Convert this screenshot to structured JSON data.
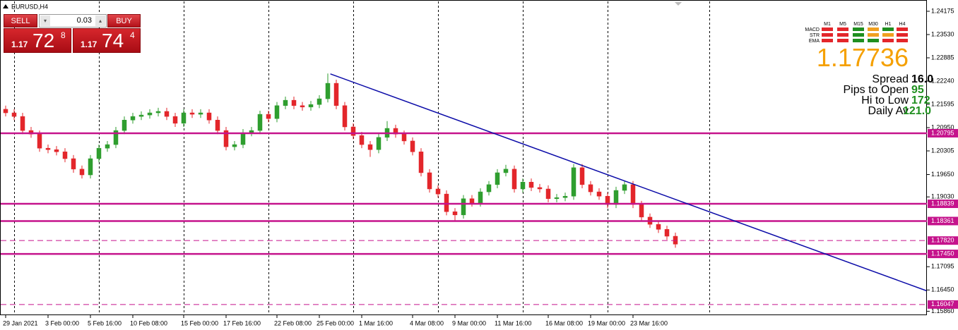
{
  "chart_data": {
    "type": "candlestick",
    "title": "EURUSD,H4",
    "categories": [
      "29 Jan 2021",
      null,
      null,
      null,
      null,
      "3 Feb 00:00",
      null,
      null,
      null,
      null,
      "5 Feb 16:00",
      null,
      null,
      null,
      null,
      "10 Feb 08:00",
      null,
      null,
      null,
      null,
      null,
      "15 Feb 00:00",
      null,
      null,
      null,
      null,
      "17 Feb 16:00",
      null,
      null,
      null,
      null,
      null,
      "22 Feb 08:00",
      null,
      null,
      null,
      null,
      "25 Feb 00:00",
      null,
      null,
      null,
      null,
      "1 Mar 16:00",
      null,
      null,
      null,
      null,
      null,
      "4 Mar 08:00",
      null,
      null,
      null,
      null,
      "9 Mar 00:00",
      null,
      null,
      null,
      null,
      "11 Mar 16:00",
      null,
      null,
      null,
      null,
      null,
      "16 Mar 08:00",
      null,
      null,
      null,
      null,
      "19 Mar 00:00",
      null,
      null,
      null,
      null,
      "23 Mar 16:00",
      null,
      null,
      null,
      null,
      null
    ],
    "open": [
      1.2146,
      1.2136,
      1.2126,
      1.2087,
      1.2077,
      1.2038,
      1.2034,
      1.2028,
      1.2009,
      1.198,
      1.1964,
      1.2009,
      1.2038,
      1.2048,
      1.2087,
      1.2116,
      1.2126,
      1.213,
      1.2136,
      1.214,
      1.2126,
      1.2107,
      1.2136,
      1.2132,
      1.2136,
      1.2116,
      1.2087,
      1.2042,
      1.2048,
      1.2081,
      1.2087,
      1.2132,
      1.212,
      1.2156,
      1.2171,
      1.2156,
      1.2152,
      1.2159,
      1.2175,
      1.2218,
      1.2156,
      1.2097,
      1.2073,
      1.2048,
      1.2034,
      1.2068,
      1.2093,
      1.2077,
      1.2058,
      1.2028,
      1.197,
      1.1925,
      1.1911,
      1.1862,
      1.1853,
      1.1898,
      1.1886,
      1.1917,
      1.1937,
      1.197,
      1.198,
      1.1925,
      1.1944,
      1.1929,
      1.1925,
      1.1898,
      1.1901,
      1.1905,
      1.1984,
      1.1937,
      1.1917,
      1.1905,
      1.1882,
      1.1921,
      1.1937,
      1.1882,
      1.1847,
      1.1827,
      1.1813,
      1.1794
    ],
    "high": [
      1.2156,
      1.2146,
      1.2136,
      1.2097,
      1.2087,
      1.2048,
      1.2044,
      1.2038,
      1.2019,
      1.199,
      1.2019,
      1.2048,
      1.2058,
      1.2097,
      1.2126,
      1.2136,
      1.214,
      1.2146,
      1.215,
      1.215,
      1.2136,
      1.2146,
      1.2146,
      1.2146,
      1.2146,
      1.2126,
      1.2097,
      1.2058,
      1.2091,
      1.2097,
      1.2142,
      1.2142,
      1.2166,
      1.2181,
      1.2181,
      1.2166,
      1.2169,
      1.2185,
      1.2245,
      1.2228,
      1.2166,
      1.2107,
      1.2083,
      1.2058,
      1.2078,
      1.2113,
      1.2103,
      1.2087,
      1.2068,
      1.2038,
      1.198,
      1.1935,
      1.1921,
      1.1872,
      1.1908,
      1.1908,
      1.1927,
      1.1947,
      1.198,
      1.1992,
      1.199,
      1.1954,
      1.1954,
      1.1939,
      1.1935,
      1.1911,
      1.1915,
      1.1994,
      1.1994,
      1.1947,
      1.1927,
      1.1915,
      1.1931,
      1.1947,
      1.1947,
      1.1892,
      1.1857,
      1.1837,
      1.1823,
      1.1804
    ],
    "low": [
      1.2126,
      1.2116,
      1.2077,
      1.2067,
      1.2028,
      1.2024,
      1.2018,
      1.1999,
      1.197,
      1.1954,
      1.1954,
      1.1999,
      1.2028,
      1.2038,
      1.2077,
      1.2106,
      1.2116,
      1.212,
      1.2126,
      1.2116,
      1.2097,
      1.2097,
      1.2122,
      1.2122,
      1.2106,
      1.2077,
      1.2032,
      1.2032,
      1.2038,
      1.2071,
      1.2077,
      1.211,
      1.211,
      1.2146,
      1.2146,
      1.2142,
      1.2142,
      1.2149,
      1.2165,
      1.2146,
      1.2087,
      1.2063,
      1.2038,
      1.2014,
      1.2024,
      1.2058,
      1.2067,
      1.2048,
      1.2018,
      1.196,
      1.1915,
      1.1901,
      1.1852,
      1.1836,
      1.1843,
      1.1876,
      1.1876,
      1.1907,
      1.1927,
      1.196,
      1.1915,
      1.1915,
      1.1919,
      1.1915,
      1.1888,
      1.1888,
      1.1891,
      1.1895,
      1.1927,
      1.1907,
      1.1895,
      1.1872,
      1.1872,
      1.1911,
      1.1872,
      1.1837,
      1.1817,
      1.1803,
      1.1784,
      1.1762
    ],
    "close": [
      1.2136,
      1.2126,
      1.2087,
      1.2077,
      1.2038,
      1.2034,
      1.2028,
      1.2009,
      1.198,
      1.1964,
      1.2009,
      1.2038,
      1.2048,
      1.2087,
      1.2116,
      1.2126,
      1.213,
      1.2136,
      1.214,
      1.2126,
      1.2107,
      1.2136,
      1.2132,
      1.2136,
      1.2116,
      1.2087,
      1.2042,
      1.2048,
      1.2081,
      1.2087,
      1.2132,
      1.212,
      1.2156,
      1.2171,
      1.2156,
      1.2152,
      1.2159,
      1.2175,
      1.2218,
      1.2156,
      1.2097,
      1.2073,
      1.2048,
      1.2034,
      1.2068,
      1.2093,
      1.2077,
      1.2058,
      1.2028,
      1.197,
      1.1925,
      1.1911,
      1.1862,
      1.1853,
      1.1898,
      1.1886,
      1.1917,
      1.1937,
      1.197,
      1.198,
      1.1925,
      1.1944,
      1.1929,
      1.1925,
      1.1898,
      1.1901,
      1.1905,
      1.1984,
      1.1937,
      1.1917,
      1.1905,
      1.1882,
      1.1921,
      1.1937,
      1.1882,
      1.1847,
      1.1827,
      1.1813,
      1.1794,
      1.1772
    ],
    "up_color": "#2f9e2f",
    "down_color": "#e3262b",
    "ylim": [
      1.15751,
      1.24488
    ],
    "yticks": [
      {
        "value": 1.24175,
        "label": "1.24175"
      },
      {
        "value": 1.2353,
        "label": "1.23530"
      },
      {
        "value": 1.22885,
        "label": "1.22885"
      },
      {
        "value": 1.2224,
        "label": "1.22240"
      },
      {
        "value": 1.21595,
        "label": "1.21595"
      },
      {
        "value": 1.2095,
        "label": "1.20950"
      },
      {
        "value": 1.20305,
        "label": "1.20305"
      },
      {
        "value": 1.1965,
        "label": "1.19650"
      },
      {
        "value": 1.1903,
        "label": "1.19030"
      },
      {
        "value": 1.17095,
        "label": "1.17095"
      },
      {
        "value": 1.1645,
        "label": "1.16450"
      },
      {
        "value": 1.1586,
        "label": "1.15860"
      }
    ],
    "levels": [
      {
        "value": 1.20795,
        "style": "solid"
      },
      {
        "value": 1.18839,
        "style": "solid"
      },
      {
        "value": 1.18361,
        "style": "solid"
      },
      {
        "value": 1.1782,
        "label": "1.17820",
        "style": "dashed"
      },
      {
        "value": 1.1745,
        "label": "1.17450",
        "style": "solid"
      },
      {
        "value": 1.16047,
        "style": "dashed"
      }
    ],
    "level_color": "#c5138c",
    "trendline": {
      "x": [
        38.3,
        108.6
      ],
      "y": [
        1.2244,
        1.1643
      ],
      "color": "#0b0ba8"
    }
  },
  "trade_panel": {
    "sell": "SELL",
    "buy": "BUY",
    "lot": "0.03",
    "sell_price": {
      "prefix": "1.17",
      "big": "72",
      "small": "8"
    },
    "buy_price": {
      "prefix": "1.17",
      "big": "74",
      "small": "4"
    }
  },
  "indicator_panel": {
    "timeframes": [
      "M1",
      "M5",
      "M15",
      "M30",
      "H1",
      "H4"
    ],
    "signals": [
      {
        "name": "MACD",
        "colors": [
          "#e3262b",
          "#e3262b",
          "#1f8f1f",
          "#f0a020",
          "#1f8f1f",
          "#e3262b"
        ]
      },
      {
        "name": "STR",
        "colors": [
          "#e3262b",
          "#e3262b",
          "#1f8f1f",
          "#f0a020",
          "#f0a020",
          "#e3262b"
        ]
      },
      {
        "name": "EMA",
        "colors": [
          "#e3262b",
          "#e3262b",
          "#1f8f1f",
          "#1f8f1f",
          "#e3262b",
          "#e3262b"
        ]
      }
    ],
    "price": 1.17736,
    "stats": [
      {
        "label": "Spread",
        "value": "16.0"
      },
      {
        "label": "Pips to Open",
        "value": "95"
      },
      {
        "label": "Hi to Low",
        "value": "172"
      },
      {
        "label": "Daily Av",
        "value": "121.0"
      }
    ]
  }
}
